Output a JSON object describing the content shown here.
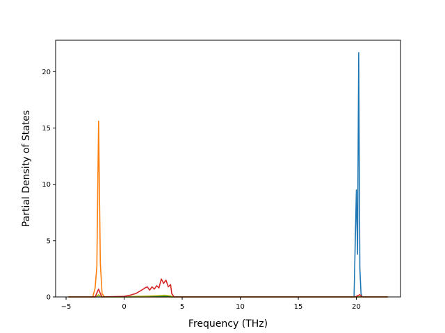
{
  "chart_data": {
    "type": "line",
    "title": "",
    "xlabel": "Frequency (THz)",
    "ylabel": "Partial Density of States",
    "xlim": [
      -5.9,
      23.8
    ],
    "ylim": [
      0,
      22.8
    ],
    "x_ticks": [
      -5,
      0,
      5,
      10,
      15,
      20
    ],
    "y_ticks": [
      0,
      5,
      10,
      15,
      20
    ],
    "grid": false,
    "legend": "none",
    "series": [
      {
        "color": "#1f77b4",
        "x": [
          -4.8,
          19.6,
          19.8,
          20.0,
          20.1,
          20.2,
          20.3,
          20.4,
          20.5,
          22.7
        ],
        "y": [
          0,
          0,
          0,
          9.5,
          3.8,
          21.7,
          2.5,
          0.3,
          0,
          0
        ]
      },
      {
        "color": "#ff7f0e",
        "x": [
          -4.8,
          -2.7,
          -2.5,
          -2.35,
          -2.2,
          -2.05,
          -1.9,
          -1.7,
          22.7
        ],
        "y": [
          0,
          0,
          0.8,
          2.7,
          15.6,
          3.0,
          0.3,
          0,
          0
        ]
      },
      {
        "color": "#2ca02c",
        "x": [
          -4.8,
          -2.5,
          -2.2,
          -1.9,
          0,
          1.5,
          2.5,
          3.5,
          4.0,
          22.7
        ],
        "y": [
          0,
          0,
          0.15,
          0,
          0,
          0.02,
          0.05,
          0.08,
          0,
          0
        ]
      },
      {
        "color": "#bcbd22",
        "x": [
          -4.8,
          -2.4,
          -2.2,
          -2.0,
          0,
          1.0,
          2.0,
          3.0,
          3.5,
          4.0,
          4.2,
          22.7
        ],
        "y": [
          0,
          0,
          0.2,
          0,
          0,
          0.05,
          0.08,
          0.12,
          0.15,
          0.1,
          0,
          0
        ]
      },
      {
        "color": "#d62728",
        "x": [
          -4.8,
          -2.5,
          -2.35,
          -2.2,
          -2.05,
          -1.9,
          0,
          0.5,
          1.0,
          1.5,
          1.8,
          2.0,
          2.2,
          2.4,
          2.6,
          2.8,
          3.0,
          3.2,
          3.4,
          3.6,
          3.8,
          4.0,
          4.1,
          4.3,
          19.9,
          20.1,
          20.3,
          20.5,
          22.7
        ],
        "y": [
          0,
          0,
          0.35,
          0.7,
          0.3,
          0,
          0.05,
          0.15,
          0.3,
          0.6,
          0.8,
          0.9,
          0.6,
          0.9,
          0.7,
          1.0,
          0.8,
          1.6,
          1.2,
          1.5,
          0.9,
          1.1,
          0.3,
          0,
          0,
          0.1,
          0.2,
          0,
          0
        ]
      }
    ]
  }
}
